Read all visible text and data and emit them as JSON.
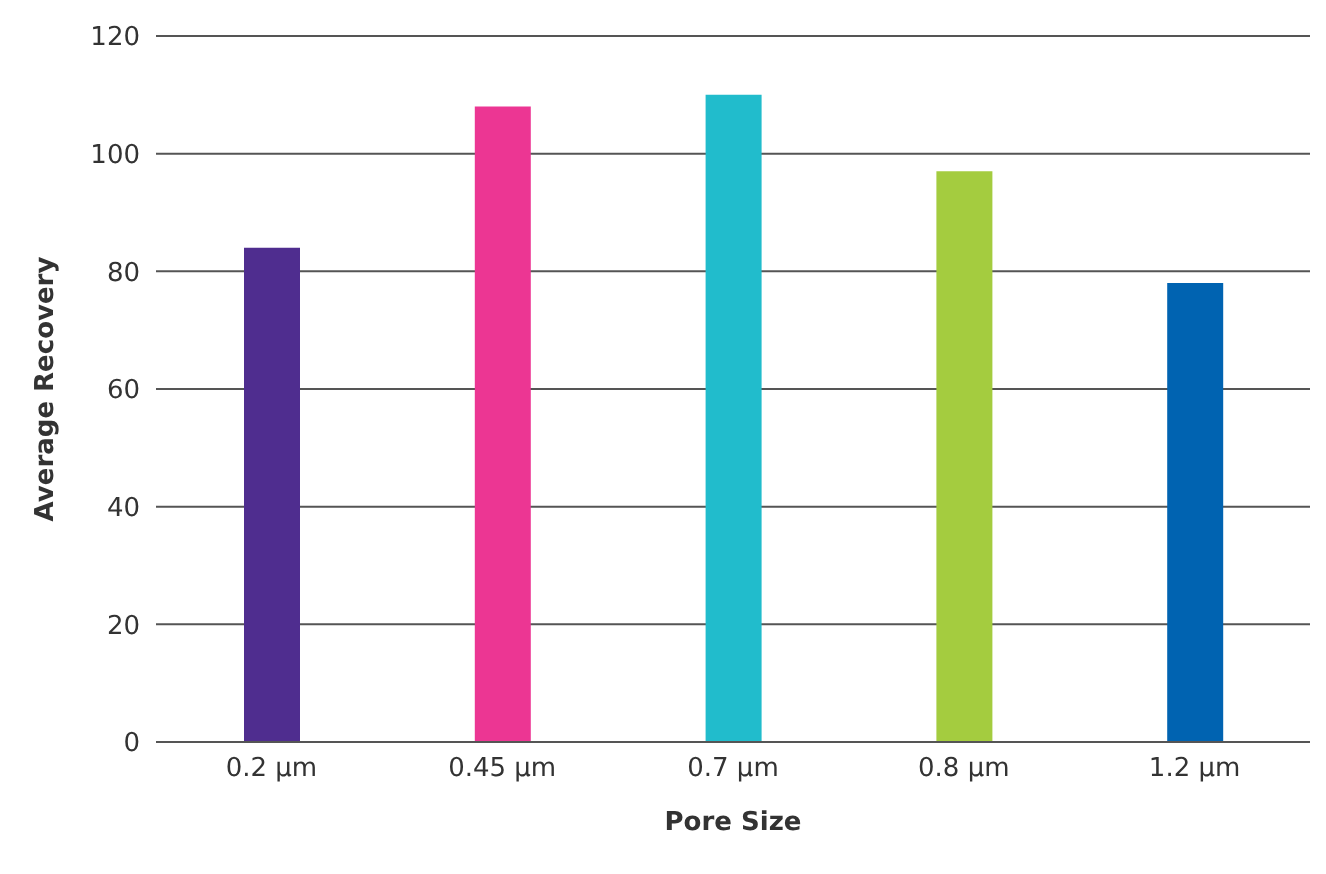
{
  "chart_data": {
    "type": "bar",
    "xlabel": "Pore Size",
    "ylabel": "Average Recovery",
    "categories": [
      "0.2 µm",
      "0.45 µm",
      "0.7 µm",
      "0.8 µm",
      "1.2 µm"
    ],
    "values": [
      84,
      108,
      110,
      97,
      78
    ],
    "colors": [
      "#4f2d8f",
      "#ec3693",
      "#21bccc",
      "#a4cc3f",
      "#0063b1"
    ],
    "ylim": [
      0,
      120
    ],
    "yticks": [
      0,
      20,
      40,
      60,
      80,
      100,
      120
    ],
    "grid": "y",
    "legend": false
  }
}
